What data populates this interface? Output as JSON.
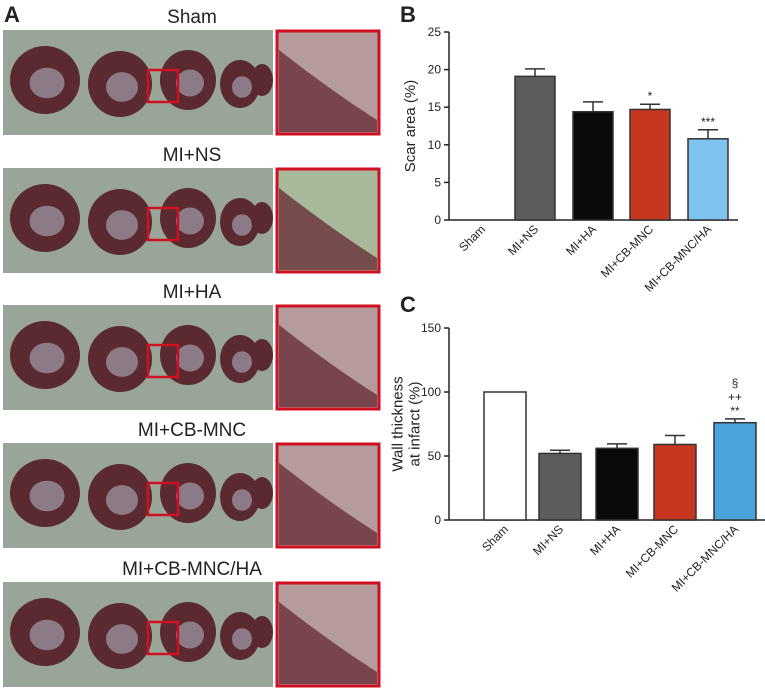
{
  "panel_a": {
    "label": "A",
    "rows": [
      "Sham",
      "MI+NS",
      "MI+HA",
      "MI+CB-MNC",
      "MI+CB-MNC/HA"
    ]
  },
  "chart_data": [
    {
      "type": "bar",
      "panel": "B",
      "ylabel": [
        "Scar area (%)"
      ],
      "categories": [
        "Sham",
        "MI+NS",
        "MI+HA",
        "MI+CB-MNC",
        "MI+CB-MNC/HA"
      ],
      "values": [
        0,
        19.1,
        14.4,
        14.7,
        10.8
      ],
      "errors": [
        0,
        1.0,
        1.3,
        0.7,
        1.2
      ],
      "colors": [
        "#ffffff",
        "#5b5c5c",
        "#0a0a0a",
        "#c7361f",
        "#7ec3ef"
      ],
      "significance": [
        null,
        null,
        null,
        [
          "*"
        ],
        [
          "***"
        ]
      ],
      "ylim": [
        0,
        25
      ],
      "yticks": [
        0,
        5,
        10,
        15,
        20,
        25
      ]
    },
    {
      "type": "bar",
      "panel": "C",
      "ylabel": [
        "Wall thickness",
        "at infarct (%)"
      ],
      "categories": [
        "Sham",
        "MI+NS",
        "MI+HA",
        "MI+CB-MNC",
        "MI+CB-MNC/HA"
      ],
      "values": [
        100,
        52,
        56,
        59,
        76
      ],
      "errors": [
        0,
        2.5,
        3.5,
        7,
        3
      ],
      "colors": [
        "#ffffff",
        "#5b5c5c",
        "#0a0a0a",
        "#c7361f",
        "#4ba3dc"
      ],
      "significance": [
        null,
        null,
        null,
        null,
        [
          "§",
          "++",
          "**"
        ]
      ],
      "ylim": [
        0,
        150
      ],
      "yticks": [
        0,
        50,
        100,
        150
      ]
    }
  ]
}
